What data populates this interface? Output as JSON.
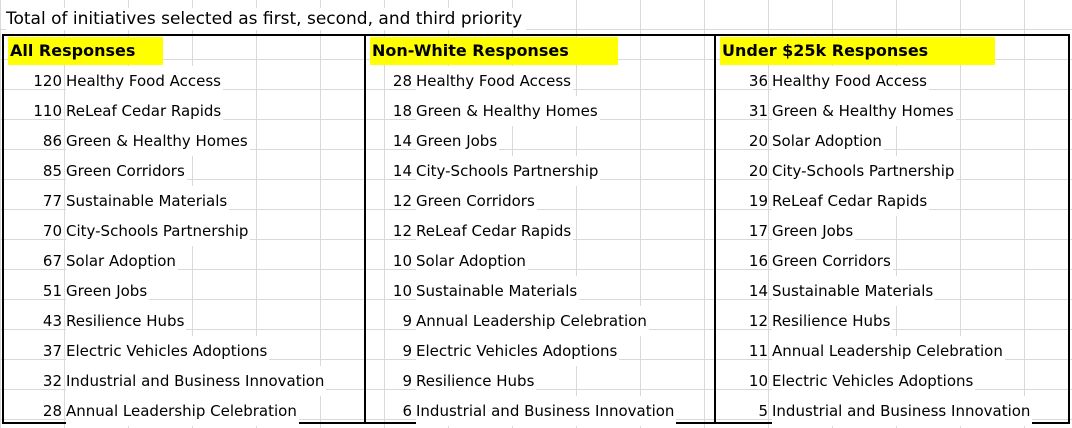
{
  "title": "Total of initiatives selected as first, second, and third priority",
  "sections": [
    {
      "header": "All Responses",
      "rows": [
        {
          "count": "120",
          "name": "Healthy Food Access"
        },
        {
          "count": "110",
          "name": "ReLeaf Cedar Rapids"
        },
        {
          "count": "86",
          "name": "Green & Healthy Homes"
        },
        {
          "count": "85",
          "name": "Green Corridors"
        },
        {
          "count": "77",
          "name": "Sustainable Materials"
        },
        {
          "count": "70",
          "name": "City-Schools Partnership"
        },
        {
          "count": "67",
          "name": "Solar Adoption"
        },
        {
          "count": "51",
          "name": "Green Jobs"
        },
        {
          "count": "43",
          "name": "Resilience Hubs"
        },
        {
          "count": "37",
          "name": "Electric Vehicles Adoptions"
        },
        {
          "count": "32",
          "name": "Industrial and Business Innovation"
        },
        {
          "count": "28",
          "name": "Annual Leadership Celebration"
        }
      ]
    },
    {
      "header": "Non-White Responses",
      "rows": [
        {
          "count": "28",
          "name": "Healthy Food Access"
        },
        {
          "count": "18",
          "name": "Green & Healthy Homes"
        },
        {
          "count": "14",
          "name": "Green Jobs"
        },
        {
          "count": "14",
          "name": "City-Schools Partnership"
        },
        {
          "count": "12",
          "name": "Green Corridors"
        },
        {
          "count": "12",
          "name": "ReLeaf Cedar Rapids"
        },
        {
          "count": "10",
          "name": "Solar Adoption"
        },
        {
          "count": "10",
          "name": "Sustainable Materials"
        },
        {
          "count": "9",
          "name": "Annual Leadership Celebration"
        },
        {
          "count": "9",
          "name": "Electric Vehicles Adoptions"
        },
        {
          "count": "9",
          "name": "Resilience Hubs"
        },
        {
          "count": "6",
          "name": "Industrial and Business Innovation"
        }
      ]
    },
    {
      "header": "Under $25k Responses",
      "rows": [
        {
          "count": "36",
          "name": "Healthy Food Access"
        },
        {
          "count": "31",
          "name": "Green & Healthy Homes"
        },
        {
          "count": "20",
          "name": "Solar Adoption"
        },
        {
          "count": "20",
          "name": "City-Schools Partnership"
        },
        {
          "count": "19",
          "name": "ReLeaf Cedar Rapids"
        },
        {
          "count": "17",
          "name": "Green Jobs"
        },
        {
          "count": "16",
          "name": "Green Corridors"
        },
        {
          "count": "14",
          "name": "Sustainable Materials"
        },
        {
          "count": "12",
          "name": "Resilience Hubs"
        },
        {
          "count": "11",
          "name": "Annual Leadership Celebration"
        },
        {
          "count": "10",
          "name": "Electric Vehicles Adoptions"
        },
        {
          "count": "5",
          "name": "Industrial and Business Innovation"
        }
      ]
    }
  ],
  "colors": {
    "header_highlight": "#ffff00",
    "gridline": "#d9d9d9",
    "border": "#000000"
  }
}
